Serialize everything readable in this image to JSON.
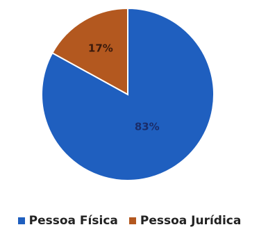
{
  "chart_data": {
    "type": "pie",
    "categories": [
      "Pessoa Física",
      "Pessoa Jurídica"
    ],
    "values": [
      83,
      17
    ],
    "labels": [
      "83%",
      "17%"
    ],
    "colors": [
      "#1f5fbf",
      "#b3581f"
    ],
    "label_colors": [
      "#1a2d6b",
      "#3a1a0c"
    ],
    "start_angle_deg": 0,
    "direction": "clockwise",
    "title": "",
    "legend_position": "bottom"
  }
}
